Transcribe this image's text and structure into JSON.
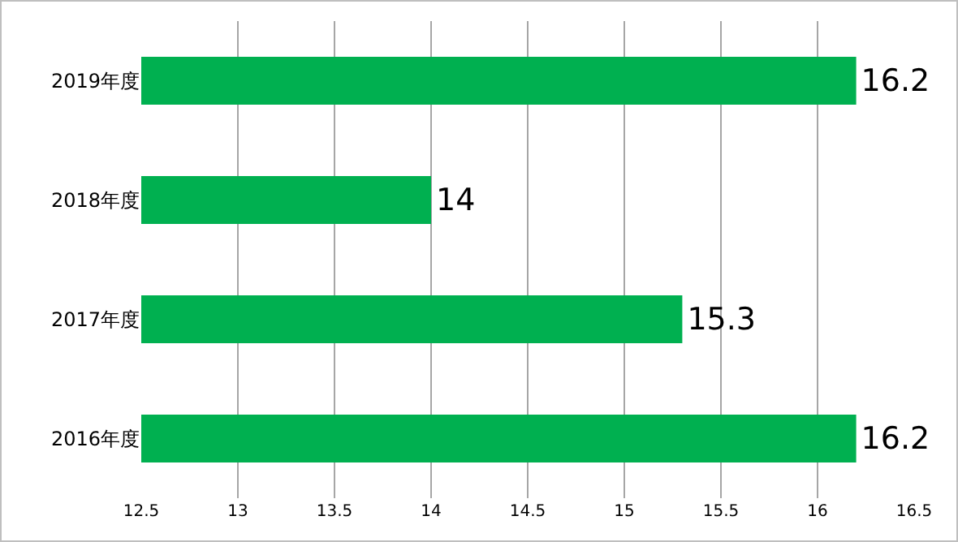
{
  "chart_data": {
    "type": "bar",
    "orientation": "horizontal",
    "categories": [
      "2019年度",
      "2018年度",
      "2017年度",
      "2016年度"
    ],
    "values": [
      16.2,
      14,
      15.3,
      16.2
    ],
    "color": "#00b050",
    "xlim": [
      12.5,
      16.5
    ],
    "xticks": [
      12.5,
      13,
      13.5,
      14,
      14.5,
      15,
      15.5,
      16,
      16.5
    ],
    "grid": "x",
    "data_labels": true,
    "legend": false
  }
}
